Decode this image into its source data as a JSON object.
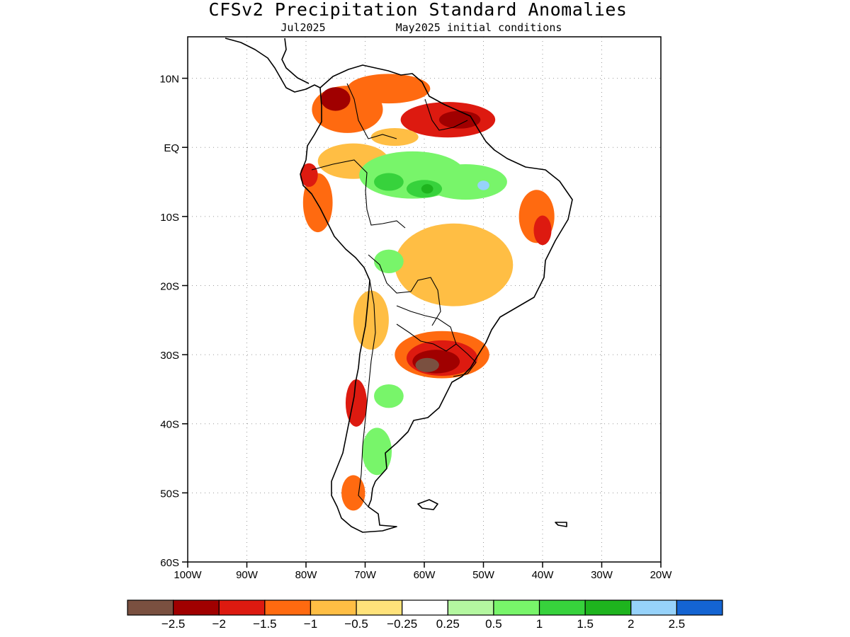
{
  "title": "CFSv2 Precipitation Standard Anomalies",
  "subtitle_month": "Jul2025",
  "subtitle_ic": "May2025 initial conditions",
  "lat_ticks": [
    {
      "label": "10N",
      "lat": 10
    },
    {
      "label": "EQ",
      "lat": 0
    },
    {
      "label": "10S",
      "lat": -10
    },
    {
      "label": "20S",
      "lat": -20
    },
    {
      "label": "30S",
      "lat": -30
    },
    {
      "label": "40S",
      "lat": -40
    },
    {
      "label": "50S",
      "lat": -50
    },
    {
      "label": "60S",
      "lat": -60
    }
  ],
  "lon_ticks": [
    {
      "label": "100W",
      "lon": -100
    },
    {
      "label": "90W",
      "lon": -90
    },
    {
      "label": "80W",
      "lon": -80
    },
    {
      "label": "70W",
      "lon": -70
    },
    {
      "label": "60W",
      "lon": -60
    },
    {
      "label": "50W",
      "lon": -50
    },
    {
      "label": "40W",
      "lon": -40
    },
    {
      "label": "30W",
      "lon": -30
    },
    {
      "label": "20W",
      "lon": -20
    }
  ],
  "map_extent": {
    "lon": [
      -100,
      -20
    ],
    "lat": [
      -60,
      16
    ]
  },
  "colorbar": {
    "colors": [
      "#7a5040",
      "#a00000",
      "#dd1a10",
      "#ff6a10",
      "#ffbe44",
      "#ffe27a",
      "#ffffff",
      "#b4f7a0",
      "#78f56a",
      "#37d23c",
      "#1eb41e",
      "#96d2fa",
      "#1464d2"
    ],
    "labels": [
      "−2.5",
      "−2",
      "−1.5",
      "−1",
      "−0.5",
      "−0.25",
      "0.25",
      "0.5",
      "1",
      "1.5",
      "2",
      "2.5"
    ]
  },
  "anomaly_regions": [
    {
      "lon": -73,
      "lat": 5.5,
      "rx": 6,
      "ry": 4,
      "level": -1
    },
    {
      "lon": -66,
      "lat": 8.5,
      "rx": 7,
      "ry": 2.5,
      "level": -1
    },
    {
      "lon": -72,
      "lat": -2,
      "rx": 6,
      "ry": 3,
      "level": -0.5
    },
    {
      "lon": -75,
      "lat": 7,
      "rx": 2.5,
      "ry": 2,
      "level": -2
    },
    {
      "lon": -56,
      "lat": 4,
      "rx": 8,
      "ry": 3,
      "level": -1.5
    },
    {
      "lon": -54,
      "lat": 4,
      "rx": 3.5,
      "ry": 1.5,
      "level": -2
    },
    {
      "lon": -65,
      "lat": 1.5,
      "rx": 4,
      "ry": 1.5,
      "level": -0.5
    },
    {
      "lon": -62,
      "lat": -4,
      "rx": 9,
      "ry": 4,
      "level": 1
    },
    {
      "lon": -53,
      "lat": -5,
      "rx": 7,
      "ry": 3,
      "level": 1
    },
    {
      "lon": -60,
      "lat": -6,
      "rx": 3,
      "ry": 1.5,
      "level": 1.5
    },
    {
      "lon": -59.5,
      "lat": -6,
      "rx": 1,
      "ry": 0.8,
      "level": 2
    },
    {
      "lon": -50,
      "lat": -5.5,
      "rx": 1,
      "ry": 0.8,
      "level": 2.5
    },
    {
      "lon": -66,
      "lat": -5,
      "rx": 2.5,
      "ry": 1.5,
      "level": 1.5
    },
    {
      "lon": -78,
      "lat": -8,
      "rx": 2.5,
      "ry": 5,
      "level": -1
    },
    {
      "lon": -79.5,
      "lat": -4,
      "rx": 1.5,
      "ry": 2,
      "level": -1.5
    },
    {
      "lon": -41,
      "lat": -10,
      "rx": 3,
      "ry": 4.5,
      "level": -1
    },
    {
      "lon": -40,
      "lat": -12,
      "rx": 1.5,
      "ry": 2.5,
      "level": -1.5
    },
    {
      "lon": -55,
      "lat": -17,
      "rx": 10,
      "ry": 7,
      "level": -0.5
    },
    {
      "lon": -66,
      "lat": -16.5,
      "rx": 2.5,
      "ry": 2,
      "level": 1
    },
    {
      "lon": -69,
      "lat": -25,
      "rx": 3,
      "ry": 5,
      "level": -0.5
    },
    {
      "lon": -57,
      "lat": -30,
      "rx": 8,
      "ry": 4,
      "level": -1
    },
    {
      "lon": -57,
      "lat": -30.5,
      "rx": 6,
      "ry": 3,
      "level": -1.5
    },
    {
      "lon": -58,
      "lat": -31,
      "rx": 4,
      "ry": 2,
      "level": -2
    },
    {
      "lon": -59.5,
      "lat": -31.5,
      "rx": 2,
      "ry": 1.2,
      "level": -2.5
    },
    {
      "lon": -71.5,
      "lat": -37,
      "rx": 1.8,
      "ry": 4,
      "level": -1.5
    },
    {
      "lon": -66,
      "lat": -36,
      "rx": 2.5,
      "ry": 2,
      "level": 1
    },
    {
      "lon": -68,
      "lat": -44,
      "rx": 2.5,
      "ry": 4,
      "level": 1
    },
    {
      "lon": -72,
      "lat": -50,
      "rx": 2,
      "ry": 3,
      "level": -1
    }
  ]
}
